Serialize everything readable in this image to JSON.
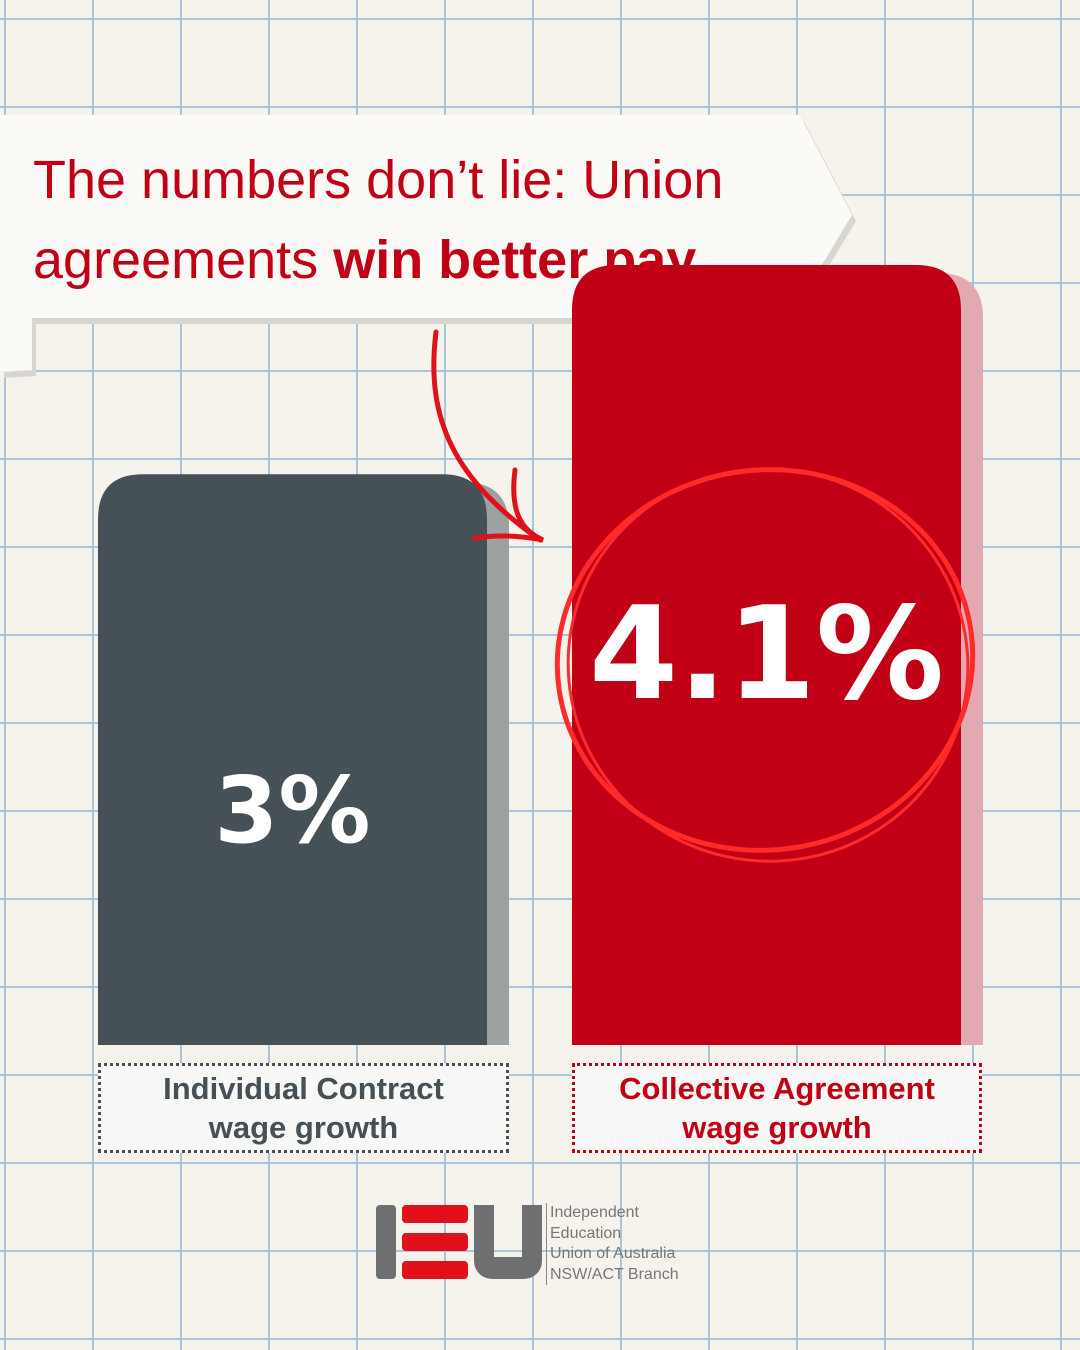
{
  "chart_data": {
    "type": "bar",
    "title": "The numbers don’t lie: Union agreements",
    "title_bold": "win better pay",
    "categories": [
      "Individual Contract wage growth",
      "Collective Agreement wage growth"
    ],
    "values": [
      3,
      4.1
    ],
    "value_labels": [
      "3%",
      "4.1%"
    ],
    "colors": [
      "#455157",
      "#c10016"
    ]
  },
  "logo": {
    "lines": [
      "Independent",
      "Education",
      "Union of Australia",
      "NSW/ACT Branch"
    ]
  }
}
